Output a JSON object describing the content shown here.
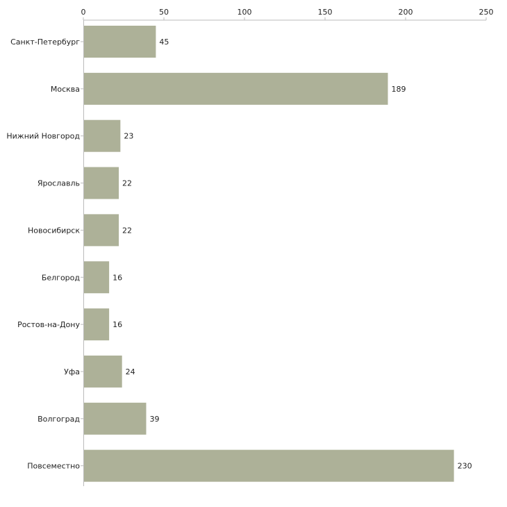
{
  "chart_data": {
    "type": "bar",
    "orientation": "horizontal",
    "title": "",
    "xlabel": "",
    "ylabel": "",
    "xlim": [
      0,
      250
    ],
    "ticks": [
      0,
      50,
      100,
      150,
      200,
      250
    ],
    "tick_labels": [
      "0",
      "50",
      "100",
      "150",
      "200",
      "250"
    ],
    "axis_position": "top",
    "grid": false,
    "categories": [
      "Санкт-Петербург",
      "Москва",
      "Нижний Новгород",
      "Ярославль",
      "Новосибирск",
      "Белгород",
      "Ростов-на-Дону",
      "Уфа",
      "Волгоград",
      "Повсеместно"
    ],
    "values": [
      45,
      189,
      23,
      22,
      22,
      16,
      16,
      24,
      39,
      230
    ],
    "value_labels": [
      "45",
      "189",
      "23",
      "22",
      "22",
      "16",
      "16",
      "24",
      "39",
      "230"
    ],
    "colors": {
      "bar": "#adb198",
      "axis": "#bbbbbb",
      "text": "#222222"
    }
  }
}
